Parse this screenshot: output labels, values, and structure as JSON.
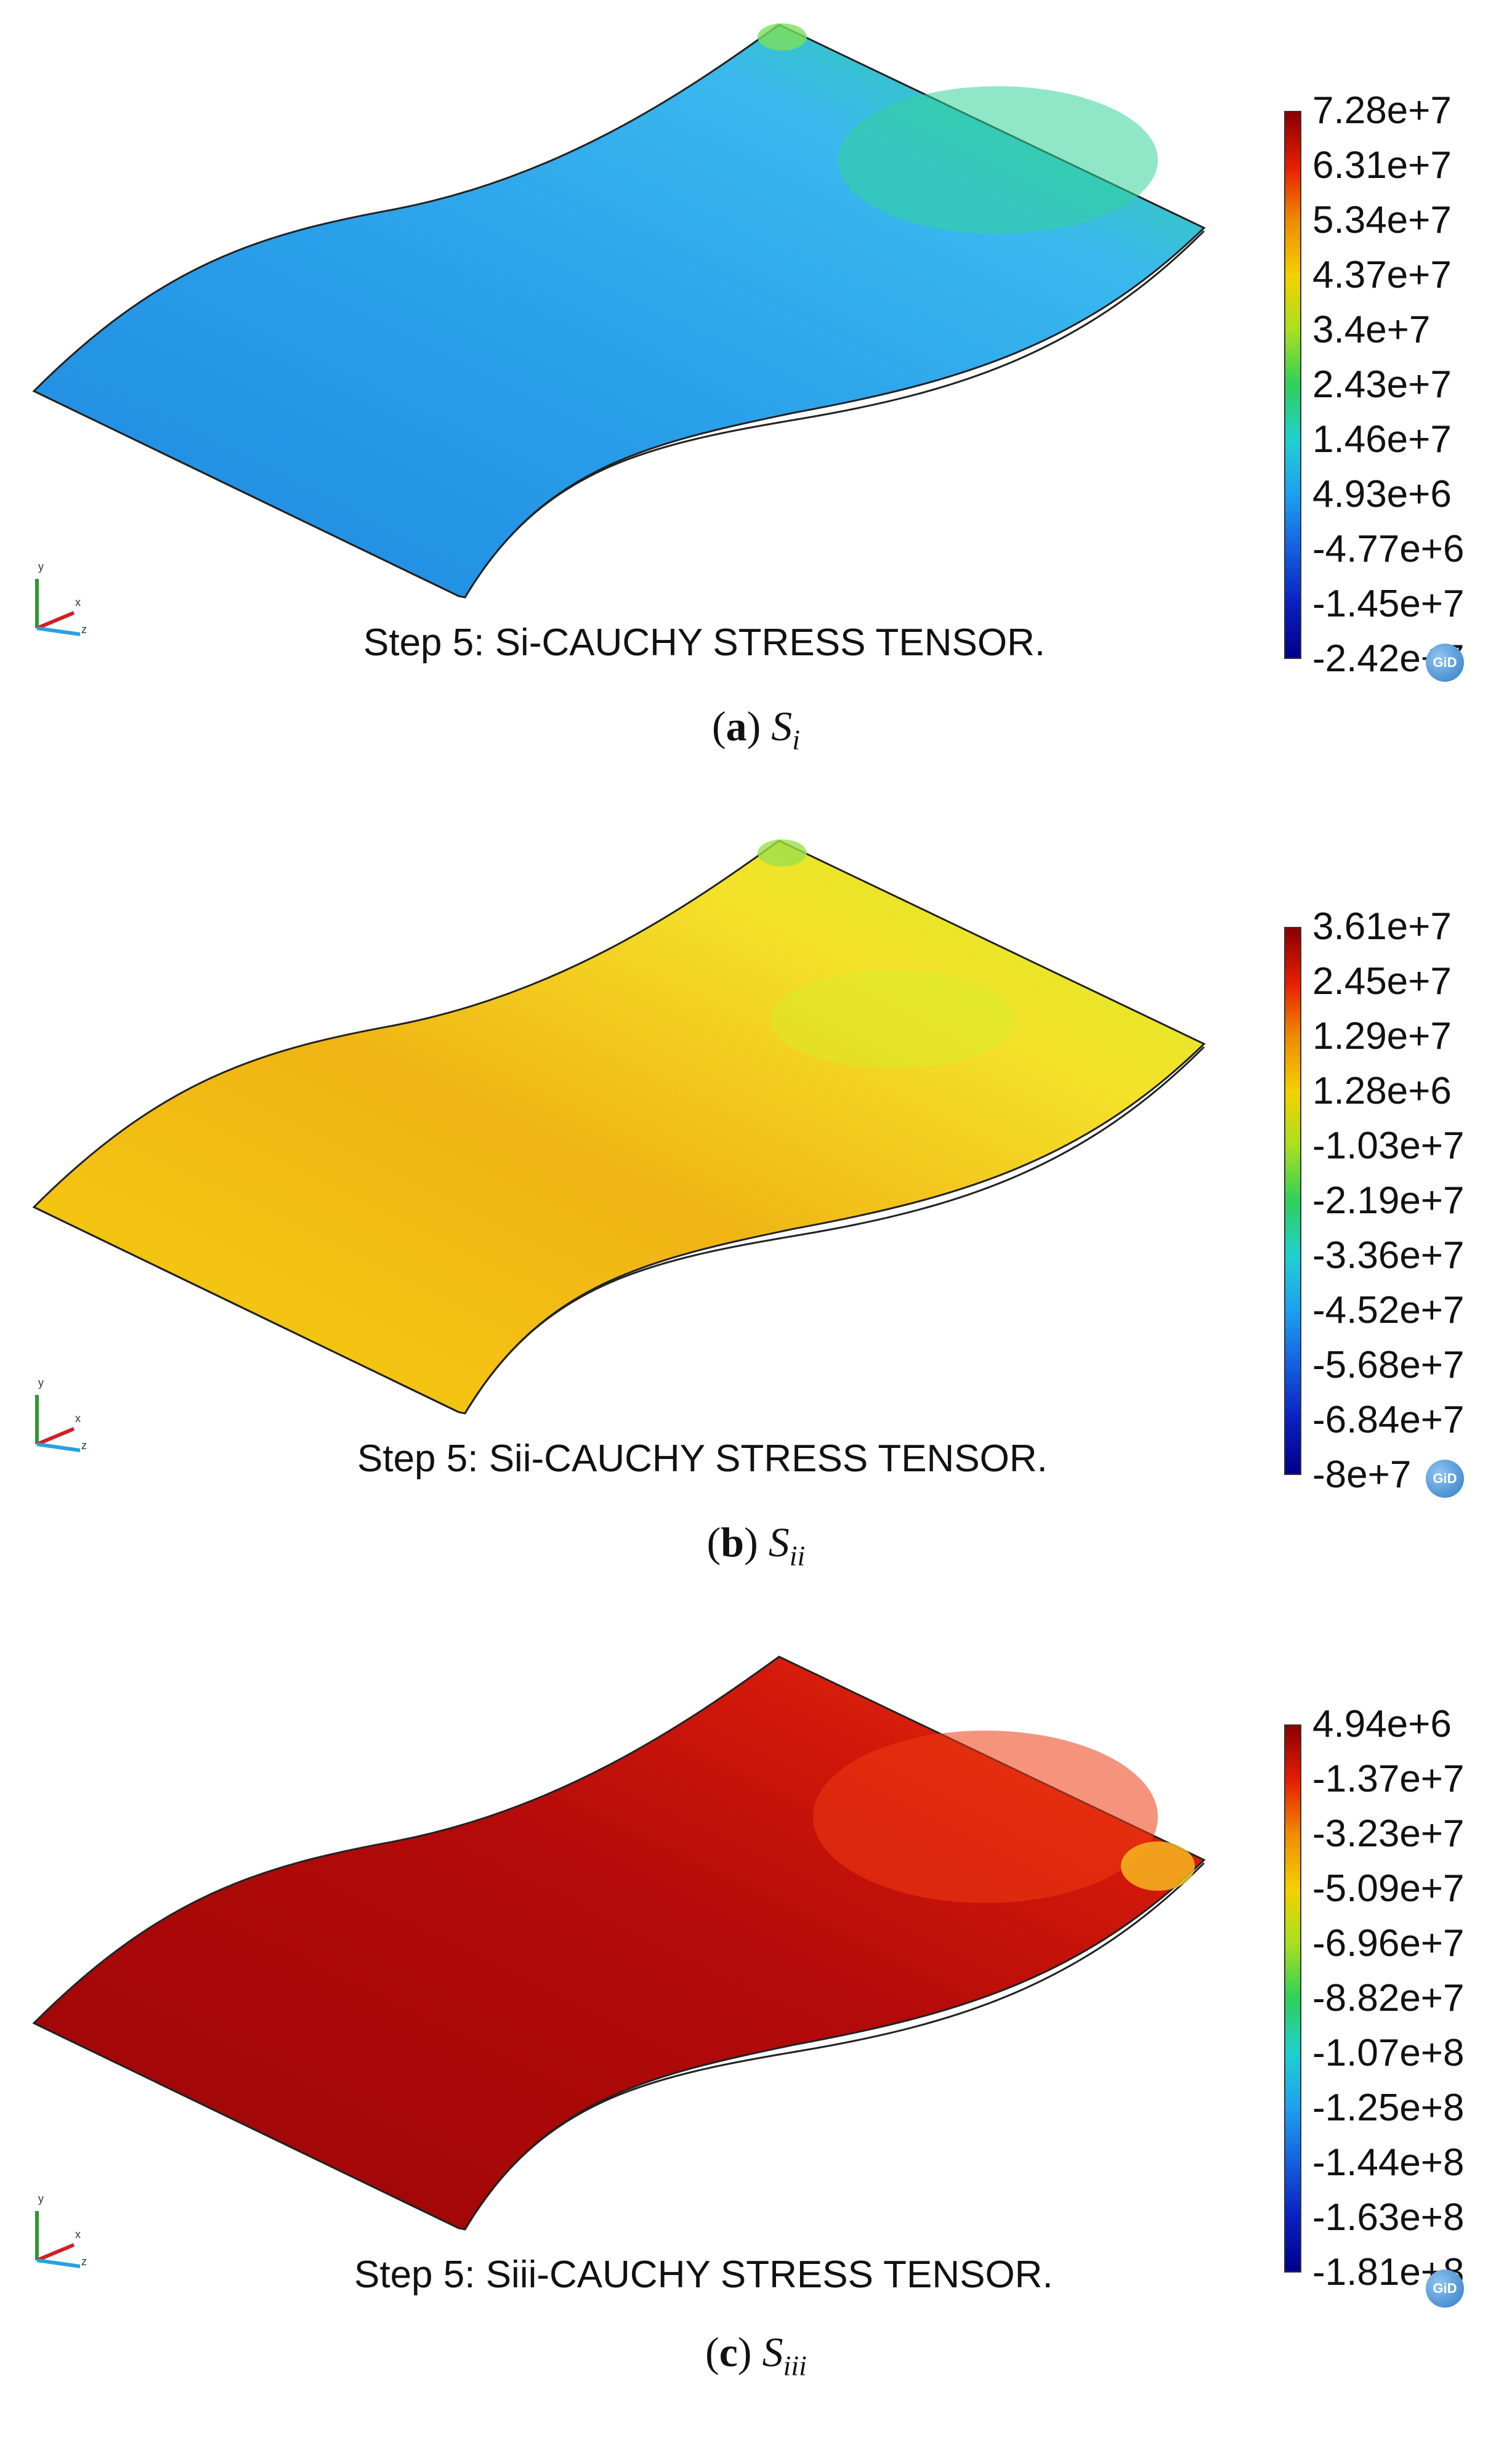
{
  "panels": [
    {
      "step_title": "Step 5: Si-CAUCHY STRESS TENSOR.",
      "caption_letter": "a",
      "caption_symbol": "S",
      "caption_subscript": "i",
      "legend_ticks": [
        "7.28e+7",
        "6.31e+7",
        "5.34e+7",
        "4.37e+7",
        "3.4e+7",
        "2.43e+7",
        "1.46e+7",
        "4.93e+6",
        "-4.77e+6",
        "-1.45e+7",
        "-2.42e+7"
      ],
      "colors": {
        "base": "#2aa0ea",
        "dark": "#1e88e0",
        "mid": "#3ab8ee",
        "hot": "#34d49a",
        "hot2": "#7be05a"
      }
    },
    {
      "step_title": "Step 5: Sii-CAUCHY STRESS TENSOR.",
      "caption_letter": "b",
      "caption_symbol": "S",
      "caption_subscript": "ii",
      "legend_ticks": [
        "3.61e+7",
        "2.45e+7",
        "1.29e+7",
        "1.28e+6",
        "-1.03e+7",
        "-2.19e+7",
        "-3.36e+7",
        "-4.52e+7",
        "-5.68e+7",
        "-6.84e+7",
        "-8e+7"
      ],
      "colors": {
        "base": "#f7cf12",
        "dark": "#f0b414",
        "mid": "#f4e22a",
        "hot": "#d8ec2a",
        "hot2": "#9ee04a"
      }
    },
    {
      "step_title": "Step 5: Siii-CAUCHY STRESS TENSOR.",
      "caption_letter": "c",
      "caption_symbol": "S",
      "caption_subscript": "iii",
      "legend_ticks": [
        "4.94e+6",
        "-1.37e+7",
        "-3.23e+7",
        "-5.09e+7",
        "-6.96e+7",
        "-8.82e+7",
        "-1.07e+8",
        "-1.25e+8",
        "-1.44e+8",
        "-1.63e+8",
        "-1.81e+8"
      ],
      "colors": {
        "base": "#b40a0a",
        "dark": "#9c0606",
        "mid": "#d41a0a",
        "hot": "#ee3a12",
        "hot2": "#f8c020"
      }
    }
  ],
  "gid_logo_text": "GiD",
  "axis_labels": {
    "y": "y",
    "x": "x",
    "z": "z"
  }
}
